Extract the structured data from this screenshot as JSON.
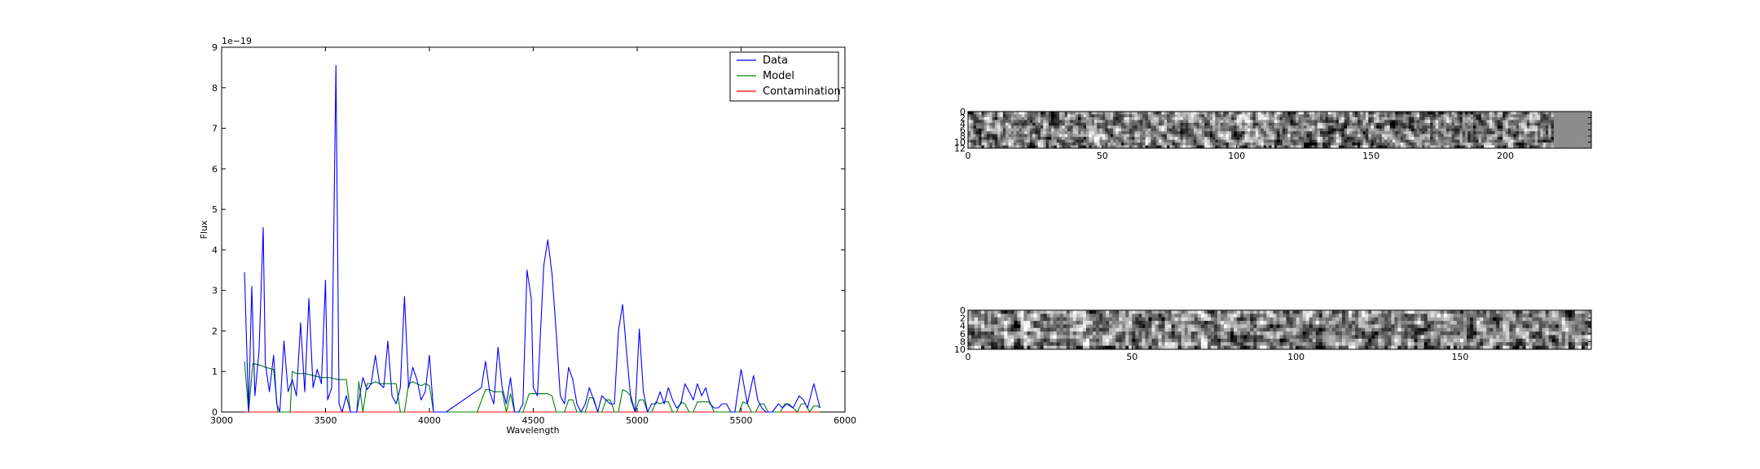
{
  "chart_data": [
    {
      "type": "line",
      "title": "",
      "xlabel": "Wavelength",
      "ylabel": "Flux",
      "offset_text": "1e−19",
      "xlim": [
        3000,
        6000
      ],
      "ylim": [
        0,
        9
      ],
      "xticks": [
        "3000",
        "3500",
        "4000",
        "4500",
        "5000",
        "5500",
        "6000"
      ],
      "yticks": [
        "0",
        "1",
        "2",
        "3",
        "4",
        "5",
        "6",
        "7",
        "8",
        "9"
      ],
      "legend_position": "upper-right",
      "legend": [
        "Data",
        "Model",
        "Contamination"
      ],
      "colors": {
        "Data": "#0000ff",
        "Model": "#008000",
        "Contamination": "#ff0000"
      },
      "series": [
        {
          "name": "Data",
          "x": [
            3110,
            3130,
            3145,
            3160,
            3180,
            3200,
            3210,
            3230,
            3250,
            3265,
            3280,
            3300,
            3320,
            3340,
            3360,
            3380,
            3400,
            3420,
            3440,
            3460,
            3480,
            3500,
            3510,
            3530,
            3550,
            3565,
            3580,
            3600,
            3620,
            3650,
            3680,
            3700,
            3720,
            3740,
            3760,
            3780,
            3800,
            3820,
            3840,
            3860,
            3880,
            3900,
            3920,
            3940,
            3960,
            3980,
            4000,
            4020,
            4040,
            4060,
            4080,
            4250,
            4270,
            4290,
            4310,
            4330,
            4350,
            4370,
            4390,
            4410,
            4430,
            4450,
            4470,
            4490,
            4500,
            4520,
            4550,
            4570,
            4590,
            4610,
            4630,
            4650,
            4670,
            4690,
            4710,
            4730,
            4750,
            4770,
            4790,
            4810,
            4830,
            4850,
            4870,
            4890,
            4910,
            4930,
            4950,
            4970,
            4990,
            5010,
            5030,
            5050,
            5070,
            5090,
            5110,
            5130,
            5150,
            5170,
            5190,
            5210,
            5230,
            5250,
            5270,
            5290,
            5310,
            5330,
            5350,
            5370,
            5390,
            5410,
            5430,
            5450,
            5470,
            5500,
            5530,
            5560,
            5580,
            5600,
            5620,
            5650,
            5680,
            5700,
            5720,
            5750,
            5780,
            5800,
            5820,
            5850,
            5870,
            5880
          ],
          "values": [
            3.45,
            0.0,
            3.1,
            0.4,
            1.5,
            4.55,
            1.2,
            0.5,
            1.4,
            0.2,
            0.0,
            1.75,
            0.5,
            0.8,
            0.4,
            2.2,
            0.5,
            2.8,
            0.6,
            1.05,
            0.7,
            3.25,
            0.3,
            0.6,
            8.55,
            0.2,
            0.0,
            0.4,
            0.0,
            0.0,
            0.85,
            0.55,
            0.7,
            1.4,
            0.7,
            0.6,
            1.75,
            0.4,
            0.2,
            0.6,
            2.85,
            0.6,
            1.1,
            0.8,
            0.3,
            0.5,
            1.4,
            0.0,
            0.0,
            0.0,
            0.0,
            0.6,
            1.25,
            0.5,
            0.2,
            1.6,
            0.6,
            0.2,
            0.85,
            0.0,
            0.0,
            0.2,
            3.5,
            2.8,
            0.6,
            0.4,
            3.6,
            4.25,
            3.4,
            2.0,
            0.4,
            0.2,
            1.1,
            0.8,
            0.2,
            0.0,
            0.2,
            0.6,
            0.3,
            0.0,
            0.4,
            0.3,
            0.2,
            0.2,
            2.0,
            2.65,
            1.4,
            0.3,
            0.0,
            2.05,
            0.5,
            0.0,
            0.2,
            0.2,
            0.5,
            0.2,
            0.6,
            0.3,
            0.1,
            0.2,
            0.7,
            0.5,
            0.3,
            0.7,
            0.4,
            0.6,
            0.2,
            0.1,
            0.1,
            0.2,
            0.2,
            0.0,
            0.0,
            1.05,
            0.2,
            0.9,
            0.3,
            0.1,
            0.0,
            0.0,
            0.2,
            0.1,
            0.2,
            0.1,
            0.4,
            0.3,
            0.1,
            0.7,
            0.3,
            0.1
          ]
        },
        {
          "name": "Model",
          "x": [
            3110,
            3130,
            3150,
            3190,
            3210,
            3250,
            3270,
            3290,
            3330,
            3340,
            3360,
            3400,
            3440,
            3480,
            3520,
            3560,
            3580,
            3600,
            3620,
            3650,
            3660,
            3680,
            3700,
            3720,
            3740,
            3760,
            3780,
            3800,
            3840,
            3860,
            3880,
            3900,
            3920,
            3940,
            3960,
            3980,
            4000,
            4020,
            4040,
            4060,
            4230,
            4270,
            4290,
            4310,
            4330,
            4350,
            4370,
            4390,
            4410,
            4430,
            4450,
            4480,
            4500,
            4530,
            4550,
            4570,
            4590,
            4610,
            4630,
            4650,
            4670,
            4690,
            4710,
            4730,
            4750,
            4770,
            4790,
            4810,
            4830,
            4850,
            4870,
            4890,
            4910,
            4930,
            4950,
            4970,
            4990,
            5010,
            5030,
            5050,
            5070,
            5090,
            5110,
            5130,
            5150,
            5170,
            5190,
            5210,
            5230,
            5250,
            5270,
            5290,
            5310,
            5330,
            5350,
            5370,
            5390,
            5410,
            5430,
            5450,
            5470,
            5490,
            5510,
            5530,
            5550,
            5570,
            5590,
            5610,
            5630,
            5650,
            5670,
            5690,
            5710,
            5730,
            5750,
            5770,
            5790,
            5810,
            5830,
            5850,
            5870,
            5880
          ],
          "values": [
            1.25,
            0.0,
            1.2,
            1.15,
            1.1,
            1.05,
            0.0,
            0.0,
            0.0,
            1.0,
            0.95,
            0.95,
            0.9,
            0.85,
            0.85,
            0.8,
            0.8,
            0.8,
            0.0,
            0.0,
            0.75,
            0.0,
            0.7,
            0.7,
            0.75,
            0.7,
            0.7,
            0.7,
            0.7,
            0.0,
            0.0,
            0.7,
            0.75,
            0.7,
            0.65,
            0.7,
            0.65,
            0.0,
            0.0,
            0.0,
            0.0,
            0.55,
            0.55,
            0.5,
            0.5,
            0.5,
            0.0,
            0.45,
            0.0,
            0.0,
            0.0,
            0.45,
            0.45,
            0.45,
            0.45,
            0.45,
            0.4,
            0.0,
            0.0,
            0.0,
            0.3,
            0.3,
            0.0,
            0.0,
            0.0,
            0.35,
            0.35,
            0.0,
            0.0,
            0.3,
            0.3,
            0.0,
            0.0,
            0.55,
            0.5,
            0.4,
            0.0,
            0.3,
            0.3,
            0.0,
            0.0,
            0.25,
            0.2,
            0.25,
            0.25,
            0.0,
            0.0,
            0.25,
            0.2,
            0.0,
            0.0,
            0.25,
            0.25,
            0.25,
            0.25,
            0.0,
            0.0,
            0.0,
            0.0,
            0.0,
            0.0,
            0.0,
            0.25,
            0.2,
            0.0,
            0.0,
            0.2,
            0.2,
            0.0,
            0.0,
            0.0,
            0.0,
            0.2,
            0.2,
            0.1,
            0.0,
            0.2,
            0.2,
            0.0,
            0.15,
            0.15,
            0.1
          ]
        },
        {
          "name": "Contamination",
          "x": [
            3110,
            5880
          ],
          "values": [
            0,
            0
          ]
        }
      ]
    },
    {
      "type": "heatmap",
      "xlim": [
        0,
        232
      ],
      "ylim": [
        12,
        0
      ],
      "xticks": [
        "0",
        "50",
        "100",
        "150",
        "200"
      ],
      "yticks": [
        "0",
        "2",
        "4",
        "6",
        "8",
        "10",
        "12"
      ],
      "rows": 13,
      "cols": 232,
      "valid_cols": 218,
      "colormap": "gray"
    },
    {
      "type": "heatmap",
      "xlim": [
        0,
        190
      ],
      "ylim": [
        10,
        0
      ],
      "xticks": [
        "0",
        "50",
        "100",
        "150"
      ],
      "yticks": [
        "0",
        "2",
        "4",
        "6",
        "8",
        "10"
      ],
      "rows": 11,
      "cols": 190,
      "valid_cols": 190,
      "colormap": "gray"
    }
  ]
}
